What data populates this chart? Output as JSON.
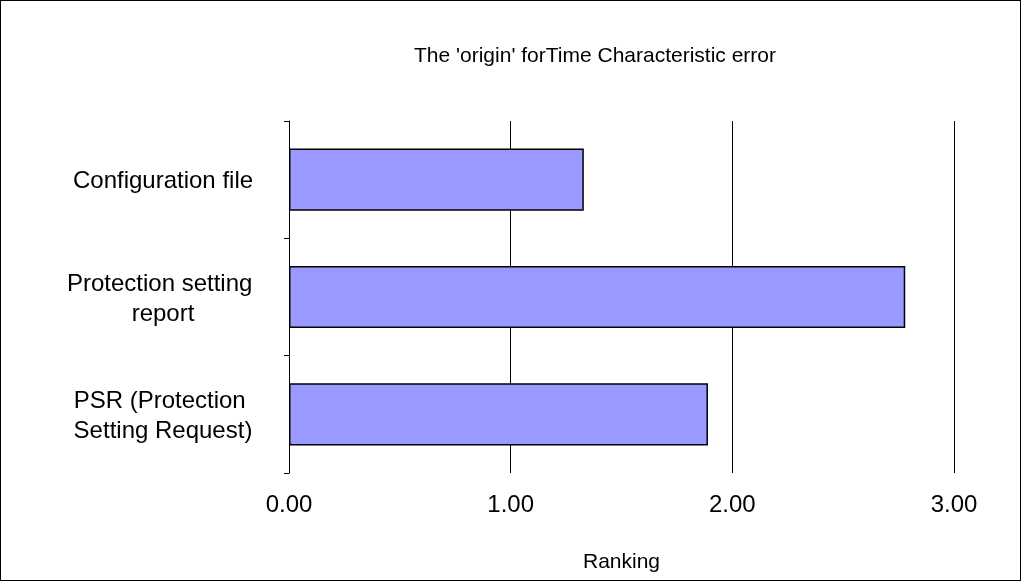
{
  "chart_data": {
    "type": "bar",
    "orientation": "horizontal",
    "title": "The 'origin' forTime Characteristic error",
    "xlabel": "Ranking",
    "categories": [
      "Configuration file",
      "Protection setting report",
      "PSR (Protection Setting Request)"
    ],
    "values": [
      1.33,
      2.78,
      1.89
    ],
    "color": "#9999ff",
    "xlim": [
      0,
      3
    ],
    "xticks": [
      {
        "value": 0,
        "label": "0.00"
      },
      {
        "value": 1,
        "label": "1.00"
      },
      {
        "value": 2,
        "label": "2.00"
      },
      {
        "value": 3,
        "label": "3.00"
      }
    ],
    "grid": "x"
  }
}
